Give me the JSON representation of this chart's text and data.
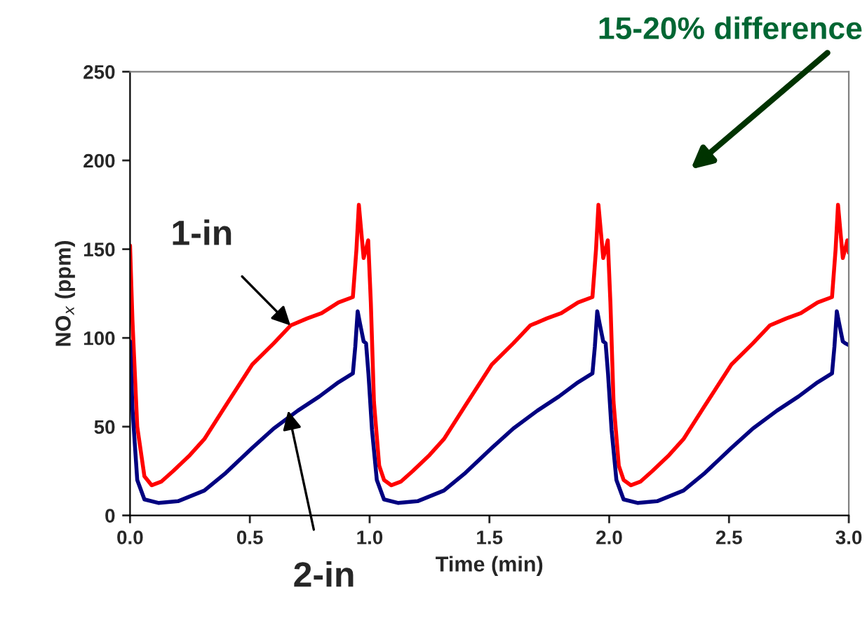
{
  "chart_data": {
    "type": "line",
    "xlabel": "Time (min)",
    "ylabel": "NO$_{x}$ (ppm)",
    "xlim": [
      0,
      3
    ],
    "ylim": [
      0,
      250
    ],
    "xticks": [
      {
        "value": 0,
        "label": "0.0"
      },
      {
        "value": 0.5,
        "label": "0.5"
      },
      {
        "value": 1,
        "label": "1.0"
      },
      {
        "value": 1.5,
        "label": "1.5"
      },
      {
        "value": 2,
        "label": "2.0"
      },
      {
        "value": 2.5,
        "label": "2.5"
      },
      {
        "value": 3,
        "label": "3.0"
      }
    ],
    "yticks": [
      0,
      50,
      100,
      150,
      200,
      250
    ],
    "grid": false,
    "legend": false,
    "marker": "none",
    "line_style": "solid",
    "series": [
      {
        "color": "#ff0000",
        "x": [
          0,
          0.01,
          0.03,
          0.06,
          0.09,
          0.13,
          0.18,
          0.25,
          0.31,
          0.4,
          0.51,
          0.6,
          0.67,
          0.74,
          0.8,
          0.87,
          0.93,
          0.945,
          0.955,
          0.965,
          0.975,
          0.985,
          0.994,
          1.005,
          1.018,
          1.04,
          1.06,
          1.09,
          1.13,
          1.18,
          1.25,
          1.31,
          1.4,
          1.51,
          1.6,
          1.67,
          1.74,
          1.8,
          1.87,
          1.93,
          1.945,
          1.955,
          1.965,
          1.975,
          1.985,
          1.994,
          2.005,
          2.018,
          2.04,
          2.06,
          2.09,
          2.13,
          2.18,
          2.25,
          2.31,
          2.4,
          2.51,
          2.6,
          2.67,
          2.74,
          2.8,
          2.87,
          2.93,
          2.945,
          2.955,
          2.965,
          2.975,
          2.985,
          2.994,
          3.0
        ],
        "values": [
          152,
          110,
          50,
          22,
          17,
          19,
          25,
          34,
          43,
          62,
          85,
          97,
          107,
          111,
          114,
          120,
          123,
          150,
          175,
          160,
          145,
          150,
          155,
          120,
          64,
          28,
          20,
          17,
          19,
          25,
          34,
          43,
          62,
          85,
          97,
          107,
          111,
          114,
          120,
          123,
          150,
          175,
          160,
          145,
          150,
          155,
          120,
          64,
          28,
          20,
          17,
          19,
          25,
          34,
          43,
          62,
          85,
          97,
          107,
          111,
          114,
          120,
          123,
          150,
          175,
          160,
          145,
          150,
          155,
          148
        ]
      },
      {
        "color": "#000080",
        "x": [
          0,
          0.01,
          0.03,
          0.06,
          0.12,
          0.2,
          0.31,
          0.4,
          0.51,
          0.6,
          0.7,
          0.79,
          0.87,
          0.93,
          0.94,
          0.95,
          0.96,
          0.975,
          0.985,
          0.995,
          1.01,
          1.03,
          1.06,
          1.12,
          1.2,
          1.31,
          1.4,
          1.51,
          1.6,
          1.7,
          1.79,
          1.87,
          1.93,
          1.94,
          1.95,
          1.96,
          1.975,
          1.985,
          1.995,
          2.01,
          2.03,
          2.06,
          2.12,
          2.2,
          2.31,
          2.4,
          2.51,
          2.6,
          2.7,
          2.79,
          2.87,
          2.93,
          2.94,
          2.95,
          2.96,
          2.975,
          2.985,
          3.0
        ],
        "values": [
          98,
          60,
          20,
          9,
          7,
          8,
          14,
          24,
          38,
          49,
          59,
          67,
          75,
          80,
          95,
          115,
          108,
          98,
          97,
          80,
          48,
          20,
          9,
          7,
          8,
          14,
          24,
          38,
          49,
          59,
          67,
          75,
          80,
          95,
          115,
          108,
          98,
          97,
          80,
          48,
          20,
          9,
          7,
          8,
          14,
          24,
          38,
          49,
          59,
          67,
          75,
          80,
          95,
          115,
          108,
          98,
          97,
          96
        ]
      }
    ],
    "annotations": [
      {
        "text": "1-in",
        "x": 0.67,
        "y": 107
      },
      {
        "text": "2-in",
        "x": 0.66,
        "y": 59
      },
      "15-20% difference"
    ]
  }
}
